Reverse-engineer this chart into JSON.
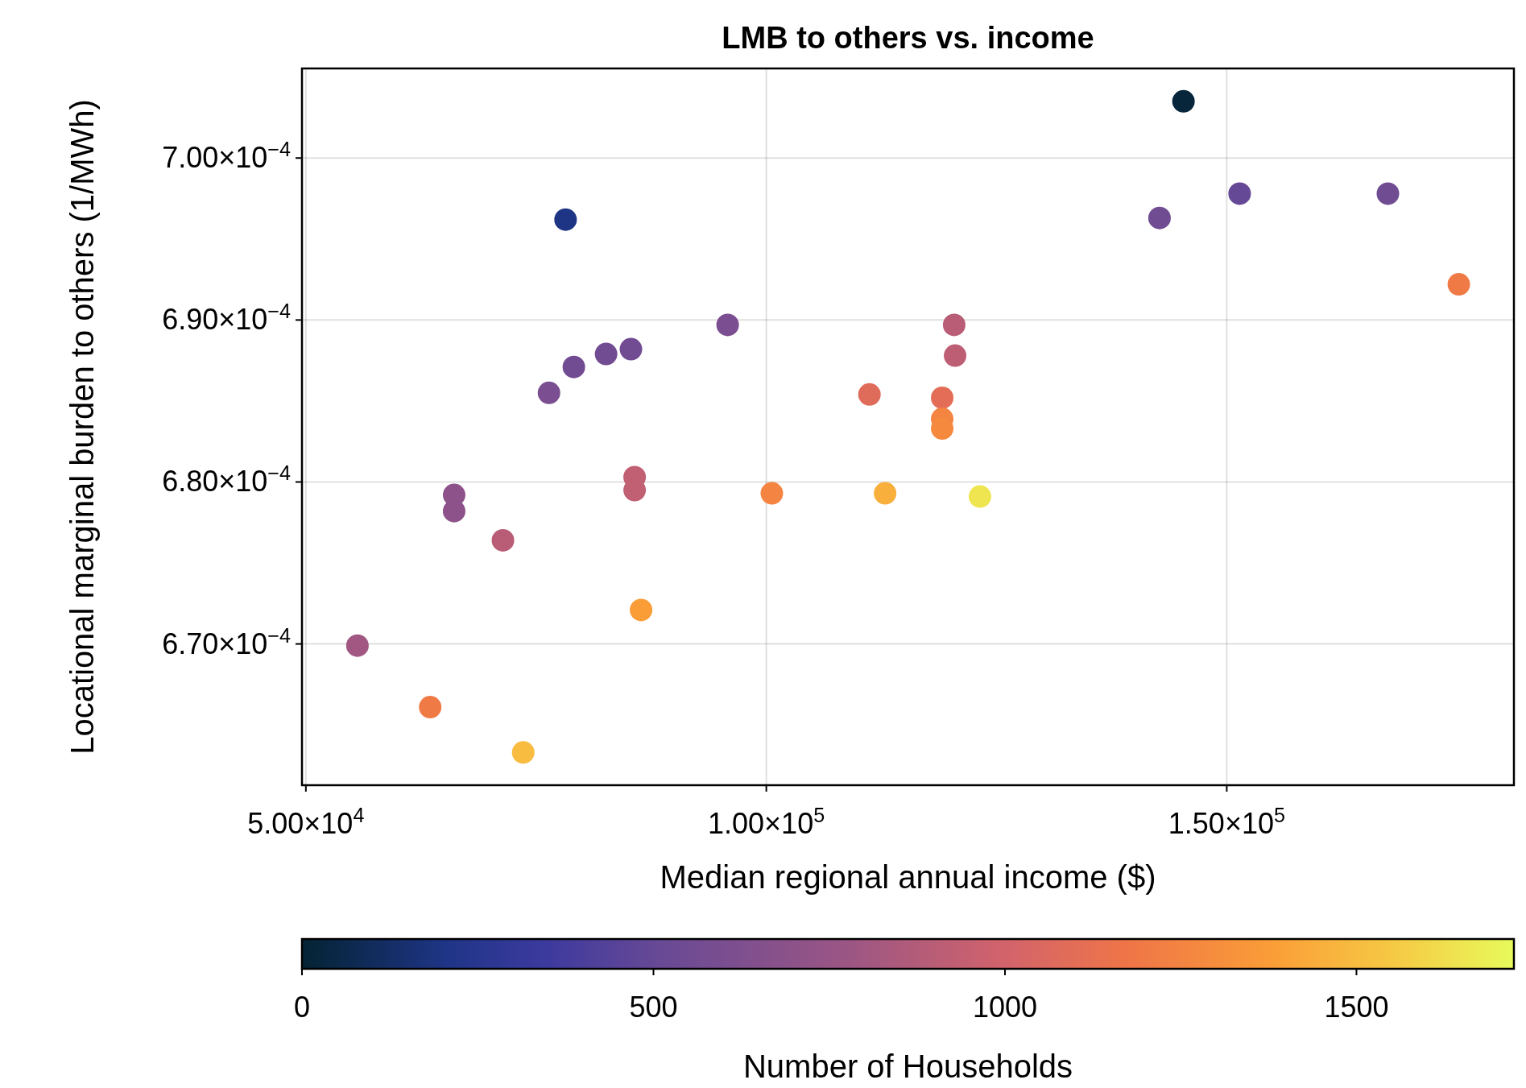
{
  "chart_data": {
    "type": "scatter",
    "title": "LMB to others vs. income",
    "xlabel": "Median regional annual income ($)",
    "ylabel": "Locational marginal burden to others (1/MWh)",
    "clabel": "Number of Households",
    "x": [
      145300,
      78200,
      142700,
      151400,
      167500,
      175200,
      95800,
      120400,
      120500,
      85300,
      82600,
      79100,
      76400,
      111200,
      119100,
      119100,
      119100,
      85700,
      85700,
      100600,
      112900,
      123200,
      66100,
      66100,
      71400,
      86400,
      55600,
      63500,
      73600
    ],
    "values": [
      0.0007035,
      0.0006962,
      0.0006963,
      0.0006978,
      0.0006978,
      0.0006922,
      0.0006897,
      0.0006897,
      0.0006878,
      0.0006882,
      0.0006879,
      0.0006871,
      0.0006855,
      0.0006854,
      0.0006852,
      0.0006839,
      0.0006833,
      0.0006803,
      0.0006795,
      0.0006793,
      0.0006793,
      0.0006791,
      0.0006792,
      0.0006782,
      0.0006764,
      0.0006721,
      0.0006699,
      0.0006661,
      0.0006633
    ],
    "cvalues": [
      20,
      200,
      550,
      500,
      550,
      1200,
      600,
      900,
      920,
      560,
      560,
      560,
      600,
      1080,
      1100,
      1250,
      1280,
      930,
      930,
      1250,
      1450,
      1650,
      700,
      700,
      900,
      1380,
      800,
      1200,
      1500
    ],
    "xlim": [
      49577,
      181184
    ],
    "ylim": [
      0.00066128,
      0.00070553
    ],
    "xticks": [
      {
        "value": 50000,
        "label": "5.00×10$^{4}$"
      },
      {
        "value": 100000,
        "label": "1.00×10$^{5}$"
      },
      {
        "value": 150000,
        "label": "1.50×10$^{5}$"
      }
    ],
    "yticks": [
      {
        "value": 0.00067,
        "label": "6.70×10$^{−4}$"
      },
      {
        "value": 0.00068,
        "label": "6.80×10$^{−4}$"
      },
      {
        "value": 0.00069,
        "label": "6.90×10$^{−4}$"
      },
      {
        "value": 0.0007,
        "label": "7.00×10$^{−4}$"
      }
    ],
    "clim": [
      0,
      1724
    ],
    "cticks": [
      0,
      500,
      1000,
      1500
    ],
    "grid": true,
    "marker": "circle"
  }
}
